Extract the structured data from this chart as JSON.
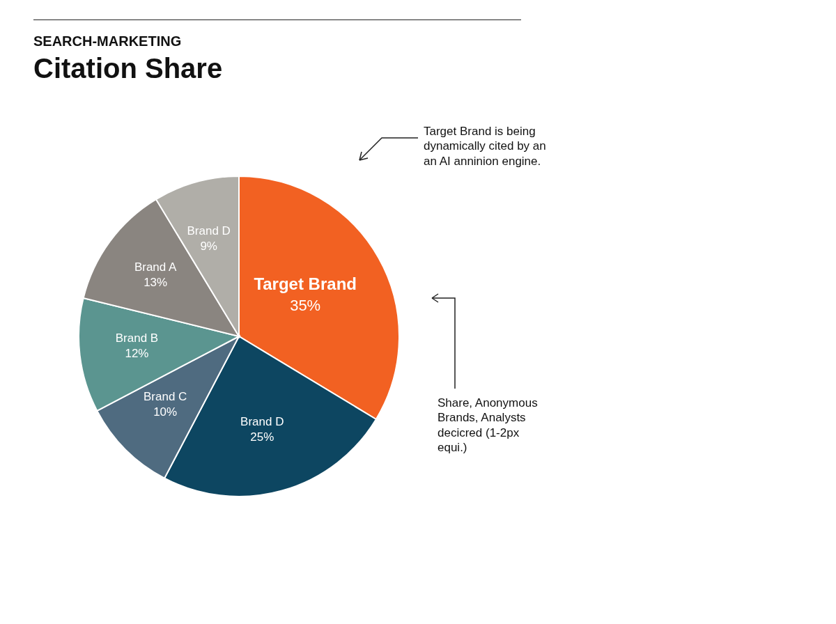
{
  "chart_data": {
    "type": "pie",
    "subtitle": "SEARCH-MARKETING",
    "title": "Citation Share",
    "categories": [
      "Target Brand",
      "Brand D",
      "Brand C",
      "Brand B",
      "Brand A",
      "Brand D"
    ],
    "values": [
      35,
      25,
      10,
      12,
      13,
      9
    ],
    "value_labels": [
      "35%",
      "25%",
      "10%",
      "12%",
      "13%",
      "9%"
    ],
    "colors": [
      "#f26122",
      "#0d4661",
      "#4f6b80",
      "#5b9590",
      "#8a8580",
      "#b0aea8"
    ],
    "legend": false,
    "annotations": [
      "Target Brand is being dynamically cited by an an AI anninion engine.",
      "Share, Anonymous Brands, Analysts decicred (1-2px equi.)"
    ]
  }
}
